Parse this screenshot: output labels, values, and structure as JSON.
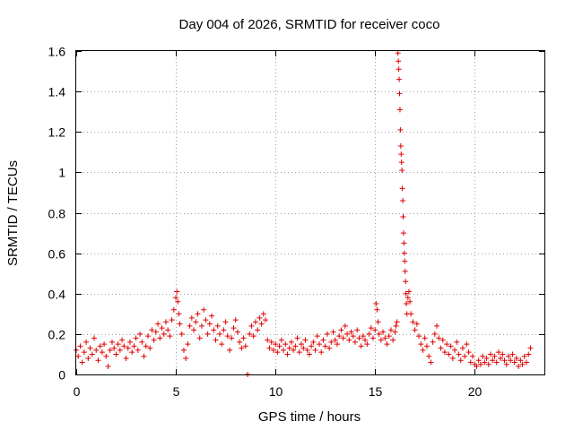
{
  "chart_data": {
    "type": "scatter",
    "title": "Day 004 of 2026, SRMTID for receiver coco",
    "xlabel": "GPS time / hours",
    "ylabel": "SRMTID / TECUs",
    "xlim": [
      0,
      23.5
    ],
    "ylim": [
      0,
      1.6
    ],
    "xticks": [
      0,
      5,
      10,
      15,
      20
    ],
    "xtick_labels": [
      "0",
      "5",
      "10",
      "15",
      "20"
    ],
    "yticks": [
      0,
      0.2,
      0.4,
      0.6,
      0.8,
      1.0,
      1.2,
      1.4,
      1.6
    ],
    "ytick_labels": [
      "0",
      "0.2",
      "0.4",
      "0.6",
      "0.8",
      "1",
      "1.2",
      "1.4",
      "1.6"
    ],
    "grid": true,
    "marker": "+",
    "series": [
      {
        "name": "SRMTID",
        "color": "#e00000",
        "points": [
          [
            0.0,
            0.12
          ],
          [
            0.1,
            0.09
          ],
          [
            0.2,
            0.14
          ],
          [
            0.3,
            0.06
          ],
          [
            0.4,
            0.11
          ],
          [
            0.5,
            0.16
          ],
          [
            0.6,
            0.08
          ],
          [
            0.7,
            0.13
          ],
          [
            0.8,
            0.1
          ],
          [
            0.9,
            0.18
          ],
          [
            1.0,
            0.12
          ],
          [
            1.1,
            0.07
          ],
          [
            1.2,
            0.14
          ],
          [
            1.3,
            0.11
          ],
          [
            1.4,
            0.15
          ],
          [
            1.5,
            0.09
          ],
          [
            1.6,
            0.04
          ],
          [
            1.7,
            0.12
          ],
          [
            1.8,
            0.16
          ],
          [
            1.9,
            0.13
          ],
          [
            2.0,
            0.1
          ],
          [
            2.1,
            0.15
          ],
          [
            2.2,
            0.12
          ],
          [
            2.3,
            0.17
          ],
          [
            2.4,
            0.14
          ],
          [
            2.5,
            0.08
          ],
          [
            2.6,
            0.13
          ],
          [
            2.7,
            0.16
          ],
          [
            2.8,
            0.11
          ],
          [
            2.9,
            0.14
          ],
          [
            3.0,
            0.18
          ],
          [
            3.1,
            0.12
          ],
          [
            3.2,
            0.2
          ],
          [
            3.3,
            0.16
          ],
          [
            3.4,
            0.09
          ],
          [
            3.5,
            0.14
          ],
          [
            3.6,
            0.19
          ],
          [
            3.7,
            0.13
          ],
          [
            3.8,
            0.22
          ],
          [
            3.9,
            0.17
          ],
          [
            4.0,
            0.21
          ],
          [
            4.1,
            0.25
          ],
          [
            4.2,
            0.18
          ],
          [
            4.3,
            0.23
          ],
          [
            4.4,
            0.2
          ],
          [
            4.5,
            0.26
          ],
          [
            4.6,
            0.22
          ],
          [
            4.7,
            0.19
          ],
          [
            4.8,
            0.27
          ],
          [
            4.9,
            0.32
          ],
          [
            5.0,
            0.38
          ],
          [
            5.05,
            0.41
          ],
          [
            5.1,
            0.36
          ],
          [
            5.15,
            0.3
          ],
          [
            5.2,
            0.25
          ],
          [
            5.3,
            0.2
          ],
          [
            5.4,
            0.12
          ],
          [
            5.5,
            0.08
          ],
          [
            5.6,
            0.15
          ],
          [
            5.7,
            0.24
          ],
          [
            5.8,
            0.28
          ],
          [
            5.9,
            0.22
          ],
          [
            6.0,
            0.26
          ],
          [
            6.1,
            0.3
          ],
          [
            6.2,
            0.18
          ],
          [
            6.3,
            0.24
          ],
          [
            6.4,
            0.32
          ],
          [
            6.5,
            0.27
          ],
          [
            6.6,
            0.2
          ],
          [
            6.7,
            0.25
          ],
          [
            6.8,
            0.29
          ],
          [
            6.9,
            0.22
          ],
          [
            7.0,
            0.17
          ],
          [
            7.1,
            0.24
          ],
          [
            7.2,
            0.2
          ],
          [
            7.3,
            0.15
          ],
          [
            7.4,
            0.22
          ],
          [
            7.5,
            0.26
          ],
          [
            7.6,
            0.19
          ],
          [
            7.7,
            0.12
          ],
          [
            7.8,
            0.18
          ],
          [
            7.9,
            0.23
          ],
          [
            8.0,
            0.27
          ],
          [
            8.1,
            0.21
          ],
          [
            8.2,
            0.16
          ],
          [
            8.3,
            0.13
          ],
          [
            8.4,
            0.18
          ],
          [
            8.5,
            0.14
          ],
          [
            8.6,
            0.0
          ],
          [
            8.7,
            0.2
          ],
          [
            8.8,
            0.24
          ],
          [
            8.9,
            0.19
          ],
          [
            9.0,
            0.26
          ],
          [
            9.1,
            0.22
          ],
          [
            9.2,
            0.28
          ],
          [
            9.3,
            0.25
          ],
          [
            9.4,
            0.3
          ],
          [
            9.5,
            0.27
          ],
          [
            9.6,
            0.17
          ],
          [
            9.7,
            0.13
          ],
          [
            9.8,
            0.16
          ],
          [
            9.9,
            0.12
          ],
          [
            10.0,
            0.15
          ],
          [
            10.1,
            0.11
          ],
          [
            10.2,
            0.14
          ],
          [
            10.3,
            0.17
          ],
          [
            10.4,
            0.12
          ],
          [
            10.5,
            0.15
          ],
          [
            10.6,
            0.1
          ],
          [
            10.7,
            0.13
          ],
          [
            10.8,
            0.16
          ],
          [
            10.9,
            0.12
          ],
          [
            11.0,
            0.14
          ],
          [
            11.1,
            0.18
          ],
          [
            11.2,
            0.11
          ],
          [
            11.3,
            0.15
          ],
          [
            11.4,
            0.13
          ],
          [
            11.5,
            0.17
          ],
          [
            11.6,
            0.12
          ],
          [
            11.7,
            0.1
          ],
          [
            11.8,
            0.14
          ],
          [
            11.9,
            0.16
          ],
          [
            12.0,
            0.12
          ],
          [
            12.1,
            0.19
          ],
          [
            12.2,
            0.15
          ],
          [
            12.3,
            0.11
          ],
          [
            12.4,
            0.17
          ],
          [
            12.5,
            0.14
          ],
          [
            12.6,
            0.2
          ],
          [
            12.7,
            0.13
          ],
          [
            12.8,
            0.16
          ],
          [
            12.9,
            0.21
          ],
          [
            13.0,
            0.17
          ],
          [
            13.1,
            0.15
          ],
          [
            13.2,
            0.19
          ],
          [
            13.3,
            0.22
          ],
          [
            13.4,
            0.18
          ],
          [
            13.5,
            0.24
          ],
          [
            13.6,
            0.2
          ],
          [
            13.7,
            0.17
          ],
          [
            13.8,
            0.21
          ],
          [
            13.9,
            0.19
          ],
          [
            14.0,
            0.16
          ],
          [
            14.1,
            0.22
          ],
          [
            14.2,
            0.18
          ],
          [
            14.3,
            0.14
          ],
          [
            14.4,
            0.19
          ],
          [
            14.5,
            0.17
          ],
          [
            14.6,
            0.15
          ],
          [
            14.7,
            0.2
          ],
          [
            14.8,
            0.23
          ],
          [
            14.9,
            0.18
          ],
          [
            15.0,
            0.22
          ],
          [
            15.05,
            0.35
          ],
          [
            15.1,
            0.32
          ],
          [
            15.15,
            0.26
          ],
          [
            15.2,
            0.2
          ],
          [
            15.3,
            0.17
          ],
          [
            15.4,
            0.21
          ],
          [
            15.5,
            0.18
          ],
          [
            15.6,
            0.15
          ],
          [
            15.7,
            0.19
          ],
          [
            15.8,
            0.22
          ],
          [
            15.9,
            0.17
          ],
          [
            16.0,
            0.21
          ],
          [
            16.05,
            0.24
          ],
          [
            16.1,
            0.26
          ],
          [
            16.15,
            1.59
          ],
          [
            16.17,
            1.55
          ],
          [
            16.19,
            1.51
          ],
          [
            16.21,
            1.46
          ],
          [
            16.23,
            1.39
          ],
          [
            16.25,
            1.31
          ],
          [
            16.27,
            1.21
          ],
          [
            16.29,
            1.13
          ],
          [
            16.31,
            1.09
          ],
          [
            16.33,
            1.05
          ],
          [
            16.35,
            1.01
          ],
          [
            16.37,
            0.92
          ],
          [
            16.39,
            0.86
          ],
          [
            16.41,
            0.78
          ],
          [
            16.43,
            0.7
          ],
          [
            16.45,
            0.65
          ],
          [
            16.47,
            0.6
          ],
          [
            16.49,
            0.56
          ],
          [
            16.51,
            0.51
          ],
          [
            16.53,
            0.46
          ],
          [
            16.55,
            0.4
          ],
          [
            16.57,
            0.35
          ],
          [
            16.6,
            0.3
          ],
          [
            16.65,
            0.38
          ],
          [
            16.7,
            0.41
          ],
          [
            16.75,
            0.36
          ],
          [
            16.8,
            0.3
          ],
          [
            16.9,
            0.26
          ],
          [
            17.0,
            0.22
          ],
          [
            17.1,
            0.25
          ],
          [
            17.2,
            0.19
          ],
          [
            17.3,
            0.15
          ],
          [
            17.4,
            0.12
          ],
          [
            17.5,
            0.18
          ],
          [
            17.6,
            0.14
          ],
          [
            17.7,
            0.09
          ],
          [
            17.8,
            0.06
          ],
          [
            17.9,
            0.16
          ],
          [
            18.0,
            0.2
          ],
          [
            18.1,
            0.24
          ],
          [
            18.2,
            0.18
          ],
          [
            18.3,
            0.13
          ],
          [
            18.4,
            0.17
          ],
          [
            18.5,
            0.11
          ],
          [
            18.6,
            0.15
          ],
          [
            18.7,
            0.1
          ],
          [
            18.8,
            0.14
          ],
          [
            18.9,
            0.08
          ],
          [
            19.0,
            0.12
          ],
          [
            19.1,
            0.16
          ],
          [
            19.2,
            0.1
          ],
          [
            19.3,
            0.07
          ],
          [
            19.4,
            0.13
          ],
          [
            19.5,
            0.09
          ],
          [
            19.6,
            0.15
          ],
          [
            19.7,
            0.11
          ],
          [
            19.8,
            0.06
          ],
          [
            19.9,
            0.09
          ],
          [
            20.0,
            0.05
          ],
          [
            20.1,
            0.04
          ],
          [
            20.2,
            0.07
          ],
          [
            20.3,
            0.05
          ],
          [
            20.4,
            0.09
          ],
          [
            20.5,
            0.06
          ],
          [
            20.6,
            0.08
          ],
          [
            20.7,
            0.05
          ],
          [
            20.8,
            0.1
          ],
          [
            20.9,
            0.07
          ],
          [
            21.0,
            0.09
          ],
          [
            21.1,
            0.06
          ],
          [
            21.2,
            0.11
          ],
          [
            21.3,
            0.08
          ],
          [
            21.4,
            0.1
          ],
          [
            21.5,
            0.07
          ],
          [
            21.6,
            0.05
          ],
          [
            21.7,
            0.09
          ],
          [
            21.8,
            0.07
          ],
          [
            21.9,
            0.1
          ],
          [
            22.0,
            0.06
          ],
          [
            22.1,
            0.08
          ],
          [
            22.2,
            0.04
          ],
          [
            22.3,
            0.07
          ],
          [
            22.4,
            0.05
          ],
          [
            22.5,
            0.09
          ],
          [
            22.6,
            0.06
          ],
          [
            22.7,
            0.1
          ],
          [
            22.8,
            0.13
          ]
        ]
      }
    ]
  }
}
